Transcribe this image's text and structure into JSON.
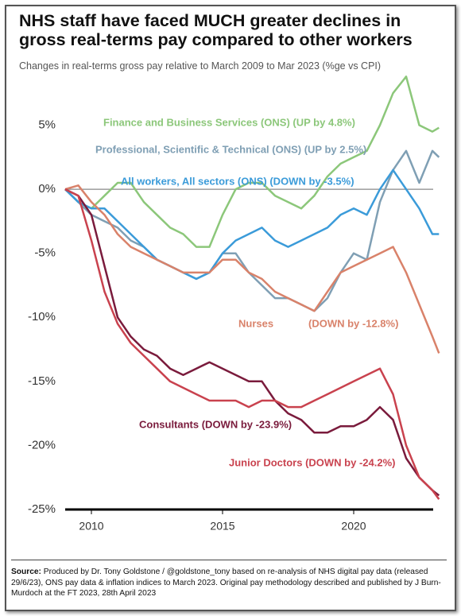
{
  "chart_data": {
    "type": "line",
    "title": [
      "NHS staff have faced MUCH greater declines in",
      "gross real-terms pay compared to other workers"
    ],
    "subtitle": "Changes in real-terms gross pay relative to March 2009 to Mar 2023 (%ge vs CPI)",
    "x": [
      2009,
      2009.5,
      2010,
      2010.5,
      2011,
      2011.5,
      2012,
      2012.5,
      2013,
      2013.5,
      2014,
      2014.5,
      2015,
      2015.5,
      2016,
      2016.5,
      2017,
      2017.5,
      2018,
      2018.5,
      2019,
      2019.5,
      2020,
      2020.5,
      2021,
      2021.5,
      2022,
      2022.5,
      2023,
      2023.25
    ],
    "xlim": [
      2009,
      2023.5
    ],
    "xticks": [
      2010,
      2015,
      2020
    ],
    "ylim": [
      -25,
      9.5
    ],
    "yticks": [
      {
        "value": 5,
        "label": "5%"
      },
      {
        "value": 0,
        "label": "0%"
      },
      {
        "value": -5,
        "label": "-5%"
      },
      {
        "value": -10,
        "label": "-10%"
      },
      {
        "value": -15,
        "label": "-15%"
      },
      {
        "value": -20,
        "label": "-20%"
      },
      {
        "value": -25,
        "label": "-25%"
      }
    ],
    "series": [
      {
        "name": "Finance and Business Services (ONS) (UP by 4.8%)",
        "color": "#8cc77a",
        "values": [
          0,
          -1,
          -1.5,
          -0.5,
          0.5,
          0.5,
          -1,
          -2,
          -3,
          -3.5,
          -4.5,
          -4.5,
          -2,
          0,
          0.5,
          0.5,
          -0.5,
          -1,
          -1.5,
          -0.5,
          1,
          2,
          2.5,
          3,
          5,
          7.5,
          8.8,
          5,
          4.5,
          4.8
        ]
      },
      {
        "name": "Professional, Scientific & Technical (ONS) (UP by 2.5%)",
        "color": "#7f9fb4",
        "values": [
          0,
          -1,
          -2,
          -2.5,
          -3,
          -4,
          -4.5,
          -5.5,
          -6,
          -6.5,
          -7,
          -6.5,
          -5,
          -5,
          -6.5,
          -7.5,
          -8.5,
          -8.5,
          -9,
          -9.5,
          -8.5,
          -6.5,
          -5,
          -5.5,
          -1,
          1.5,
          3,
          0.5,
          3,
          2.5
        ]
      },
      {
        "name": "All workers, All sectors (ONS) (DOWN by -3.5%)",
        "color": "#3b9bd9",
        "values": [
          0,
          -1,
          -1.5,
          -1.5,
          -2.5,
          -3.5,
          -4.5,
          -5.5,
          -6,
          -6.5,
          -7,
          -6.5,
          -5,
          -4,
          -3.5,
          -3,
          -4,
          -4.5,
          -4,
          -3.5,
          -3,
          -2,
          -1.5,
          -2,
          0,
          1.5,
          0,
          -1.5,
          -3.5,
          -3.5
        ]
      },
      {
        "name": "Nurses",
        "annotation": "(DOWN by -12.8%)",
        "color": "#d9826a",
        "values": [
          0,
          0.3,
          -1,
          -2,
          -3.5,
          -4.5,
          -5,
          -5.5,
          -6,
          -6.5,
          -6.5,
          -6.5,
          -5.5,
          -5.5,
          -6.5,
          -7,
          -8,
          -8.5,
          -9,
          -9.5,
          -8,
          -6.5,
          -6,
          -5.5,
          -5,
          -4.5,
          -6.5,
          -9,
          -11.5,
          -12.8
        ]
      },
      {
        "name": "Consultants (DOWN by -23.9%)",
        "color": "#7a1b3c",
        "values": [
          0,
          -0.5,
          -2,
          -6,
          -10,
          -11.5,
          -12.5,
          -13,
          -14,
          -14.5,
          -14,
          -13.5,
          -14,
          -14.5,
          -15,
          -15,
          -16.5,
          -17.5,
          -18,
          -19,
          -19,
          -18.5,
          -18.5,
          -18,
          -17,
          -18,
          -21,
          -22.5,
          -23.5,
          -23.9
        ]
      },
      {
        "name": "Junior Doctors (DOWN by -24.2%)",
        "color": "#c9424e",
        "values": [
          0,
          -0.5,
          -4,
          -8,
          -10.5,
          -12,
          -13,
          -14,
          -15,
          -15.5,
          -16,
          -16.5,
          -16.5,
          -16.5,
          -17,
          -16.5,
          -16.5,
          -17,
          -17,
          -16.5,
          -16,
          -15.5,
          -15,
          -14.5,
          -14,
          -16,
          -20,
          -22.5,
          -23.5,
          -24.2
        ]
      }
    ]
  },
  "footer": {
    "source_label": "Source:",
    "text": "Produced by Dr. Tony Goldstone / @goldstone_tony based on re-analysis of NHS digital pay data (released 29/6/23), ONS pay data & inflation indices to March 2023.  Original pay methodology described and published by J Burn-Murdoch at the FT 2023, 28th April 2023"
  }
}
